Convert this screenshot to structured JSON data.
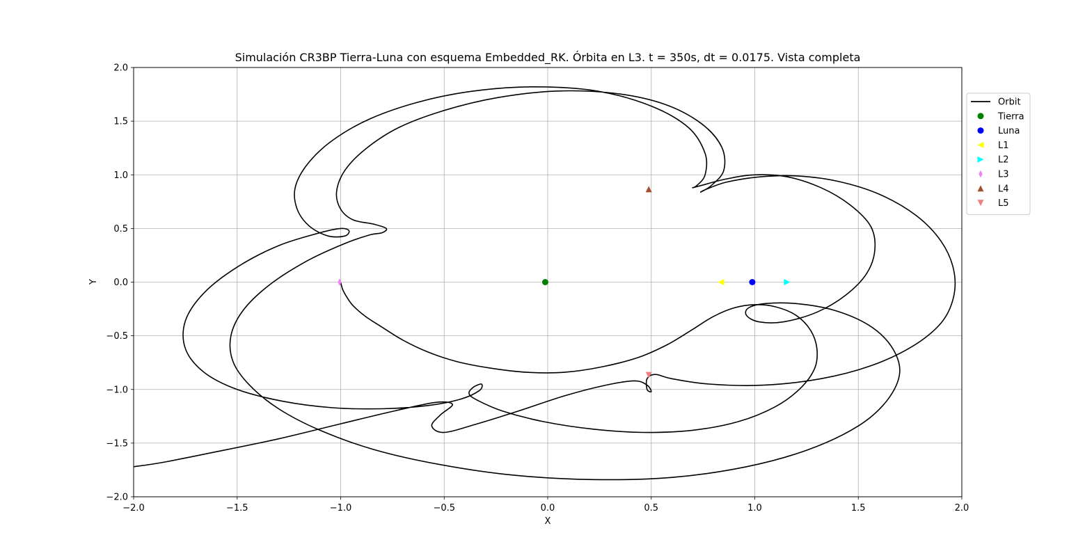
{
  "chart_data": {
    "type": "line",
    "title": "Simulación CR3BP Tierra-Luna con esquema Embedded_RK. Órbita en L3. t = 350s, dt = 0.0175. Vista completa",
    "xlabel": "X",
    "ylabel": "Y",
    "xlim": [
      -2.0,
      2.0
    ],
    "ylim": [
      -2.0,
      2.0
    ],
    "x_ticks": [
      -2.0,
      -1.5,
      -1.0,
      -0.5,
      0.0,
      0.5,
      1.0,
      1.5,
      2.0
    ],
    "y_ticks": [
      -2.0,
      -1.5,
      -1.0,
      -0.5,
      0.0,
      0.5,
      1.0,
      1.5,
      2.0
    ],
    "x_tick_labels": [
      "−2.0",
      "−1.5",
      "−1.0",
      "−0.5",
      "0.0",
      "0.5",
      "1.0",
      "1.5",
      "2.0"
    ],
    "y_tick_labels": [
      "−2.0",
      "−1.5",
      "−1.0",
      "−0.5",
      "0.0",
      "0.5",
      "1.0",
      "1.5",
      "2.0"
    ],
    "grid": true,
    "legend_position": "outside-right-top",
    "orbit": {
      "name": "Orbit",
      "color": "#000000",
      "points": [
        [
          -1.0,
          0.0
        ],
        [
          -0.99,
          -0.07
        ],
        [
          -0.97,
          -0.14
        ],
        [
          -0.94,
          -0.22
        ],
        [
          -0.88,
          -0.32
        ],
        [
          -0.8,
          -0.42
        ],
        [
          -0.7,
          -0.54
        ],
        [
          -0.58,
          -0.65
        ],
        [
          -0.44,
          -0.74
        ],
        [
          -0.28,
          -0.8
        ],
        [
          -0.1,
          -0.84
        ],
        [
          0.08,
          -0.84
        ],
        [
          0.26,
          -0.79
        ],
        [
          0.44,
          -0.7
        ],
        [
          0.58,
          -0.58
        ],
        [
          0.7,
          -0.44
        ],
        [
          0.8,
          -0.32
        ],
        [
          0.9,
          -0.24
        ],
        [
          1.0,
          -0.21
        ],
        [
          1.1,
          -0.23
        ],
        [
          1.2,
          -0.31
        ],
        [
          1.27,
          -0.45
        ],
        [
          1.3,
          -0.62
        ],
        [
          1.29,
          -0.8
        ],
        [
          1.22,
          -0.99
        ],
        [
          1.1,
          -1.16
        ],
        [
          0.92,
          -1.3
        ],
        [
          0.7,
          -1.38
        ],
        [
          0.46,
          -1.4
        ],
        [
          0.22,
          -1.37
        ],
        [
          -0.02,
          -1.3
        ],
        [
          -0.22,
          -1.2
        ],
        [
          -0.34,
          -1.1
        ],
        [
          -0.38,
          -1.04
        ],
        [
          -0.36,
          -0.98
        ],
        [
          -0.32,
          -0.95
        ],
        [
          -0.33,
          -1.01
        ],
        [
          -0.42,
          -1.09
        ],
        [
          -0.58,
          -1.15
        ],
        [
          -0.8,
          -1.18
        ],
        [
          -1.04,
          -1.17
        ],
        [
          -1.28,
          -1.11
        ],
        [
          -1.5,
          -1.0
        ],
        [
          -1.66,
          -0.84
        ],
        [
          -1.75,
          -0.62
        ],
        [
          -1.75,
          -0.36
        ],
        [
          -1.66,
          -0.1
        ],
        [
          -1.5,
          0.14
        ],
        [
          -1.3,
          0.34
        ],
        [
          -1.1,
          0.46
        ],
        [
          -1.0,
          0.5
        ],
        [
          -0.96,
          0.48
        ],
        [
          -0.98,
          0.43
        ],
        [
          -1.06,
          0.43
        ],
        [
          -1.15,
          0.52
        ],
        [
          -1.21,
          0.68
        ],
        [
          -1.22,
          0.88
        ],
        [
          -1.16,
          1.1
        ],
        [
          -1.04,
          1.32
        ],
        [
          -0.86,
          1.52
        ],
        [
          -0.62,
          1.68
        ],
        [
          -0.36,
          1.78
        ],
        [
          -0.06,
          1.82
        ],
        [
          0.24,
          1.78
        ],
        [
          0.5,
          1.64
        ],
        [
          0.68,
          1.44
        ],
        [
          0.76,
          1.2
        ],
        [
          0.76,
          1.0
        ],
        [
          0.72,
          0.9
        ],
        [
          0.7,
          0.88
        ],
        [
          0.74,
          0.9
        ],
        [
          0.86,
          0.96
        ],
        [
          1.0,
          1.0
        ],
        [
          1.16,
          0.98
        ],
        [
          1.32,
          0.88
        ],
        [
          1.46,
          0.72
        ],
        [
          1.56,
          0.52
        ],
        [
          1.58,
          0.3
        ],
        [
          1.54,
          0.08
        ],
        [
          1.44,
          -0.12
        ],
        [
          1.3,
          -0.28
        ],
        [
          1.14,
          -0.37
        ],
        [
          1.02,
          -0.37
        ],
        [
          0.96,
          -0.31
        ],
        [
          0.97,
          -0.24
        ],
        [
          1.05,
          -0.2
        ],
        [
          1.2,
          -0.2
        ],
        [
          1.38,
          -0.26
        ],
        [
          1.55,
          -0.4
        ],
        [
          1.66,
          -0.6
        ],
        [
          1.7,
          -0.84
        ],
        [
          1.64,
          -1.1
        ],
        [
          1.5,
          -1.34
        ],
        [
          1.26,
          -1.56
        ],
        [
          0.96,
          -1.72
        ],
        [
          0.6,
          -1.82
        ],
        [
          0.22,
          -1.84
        ],
        [
          -0.16,
          -1.8
        ],
        [
          -0.52,
          -1.7
        ],
        [
          -0.84,
          -1.56
        ],
        [
          -1.1,
          -1.38
        ],
        [
          -1.3,
          -1.18
        ],
        [
          -1.44,
          -0.96
        ],
        [
          -1.52,
          -0.74
        ],
        [
          -1.53,
          -0.5
        ],
        [
          -1.47,
          -0.26
        ],
        [
          -1.34,
          -0.02
        ],
        [
          -1.16,
          0.2
        ],
        [
          -0.98,
          0.36
        ],
        [
          -0.86,
          0.44
        ],
        [
          -0.8,
          0.46
        ],
        [
          -0.78,
          0.5
        ],
        [
          -0.84,
          0.54
        ],
        [
          -0.94,
          0.58
        ],
        [
          -1.0,
          0.68
        ],
        [
          -1.02,
          0.84
        ],
        [
          -0.98,
          1.04
        ],
        [
          -0.88,
          1.24
        ],
        [
          -0.72,
          1.44
        ],
        [
          -0.5,
          1.6
        ],
        [
          -0.24,
          1.72
        ],
        [
          0.04,
          1.78
        ],
        [
          0.32,
          1.76
        ],
        [
          0.56,
          1.66
        ],
        [
          0.74,
          1.48
        ],
        [
          0.84,
          1.26
        ],
        [
          0.85,
          1.04
        ],
        [
          0.79,
          0.9
        ],
        [
          0.74,
          0.84
        ],
        [
          0.76,
          0.86
        ],
        [
          0.86,
          0.93
        ],
        [
          1.02,
          0.98
        ],
        [
          1.2,
          0.99
        ],
        [
          1.4,
          0.94
        ],
        [
          1.6,
          0.82
        ],
        [
          1.78,
          0.62
        ],
        [
          1.9,
          0.38
        ],
        [
          1.96,
          0.12
        ],
        [
          1.96,
          -0.14
        ],
        [
          1.9,
          -0.38
        ],
        [
          1.76,
          -0.6
        ],
        [
          1.56,
          -0.78
        ],
        [
          1.32,
          -0.9
        ],
        [
          1.04,
          -0.96
        ],
        [
          0.78,
          -0.95
        ],
        [
          0.6,
          -0.9
        ],
        [
          0.52,
          -0.86
        ],
        [
          0.48,
          -0.9
        ],
        [
          0.48,
          -1.0
        ],
        [
          0.5,
          -1.02
        ],
        [
          0.48,
          -0.96
        ],
        [
          0.42,
          -0.92
        ],
        [
          0.28,
          -0.96
        ],
        [
          0.08,
          -1.06
        ],
        [
          -0.14,
          -1.2
        ],
        [
          -0.34,
          -1.32
        ],
        [
          -0.5,
          -1.4
        ],
        [
          -0.56,
          -1.34
        ],
        [
          -0.52,
          -1.24
        ],
        [
          -0.46,
          -1.14
        ],
        [
          -0.54,
          -1.12
        ],
        [
          -0.74,
          -1.2
        ],
        [
          -1.0,
          -1.32
        ],
        [
          -1.3,
          -1.46
        ],
        [
          -1.6,
          -1.58
        ],
        [
          -1.86,
          -1.68
        ],
        [
          -2.0,
          -1.72
        ]
      ]
    },
    "markers": [
      {
        "name": "Tierra",
        "x": -0.012,
        "y": 0.0,
        "shape": "circle",
        "color": "#008000"
      },
      {
        "name": "Luna",
        "x": 0.988,
        "y": 0.0,
        "shape": "circle",
        "color": "#0000ff"
      },
      {
        "name": "L1",
        "x": 0.837,
        "y": 0.0,
        "shape": "triangle-left",
        "color": "#ffff00"
      },
      {
        "name": "L2",
        "x": 1.156,
        "y": 0.0,
        "shape": "triangle-right",
        "color": "#00ffff"
      },
      {
        "name": "L3",
        "x": -1.005,
        "y": 0.0,
        "shape": "thin-diamond",
        "color": "#ee82ee"
      },
      {
        "name": "L4",
        "x": 0.488,
        "y": 0.866,
        "shape": "triangle-up",
        "color": "#a0522d"
      },
      {
        "name": "L5",
        "x": 0.488,
        "y": -0.866,
        "shape": "triangle-down",
        "color": "#f08080"
      }
    ]
  }
}
